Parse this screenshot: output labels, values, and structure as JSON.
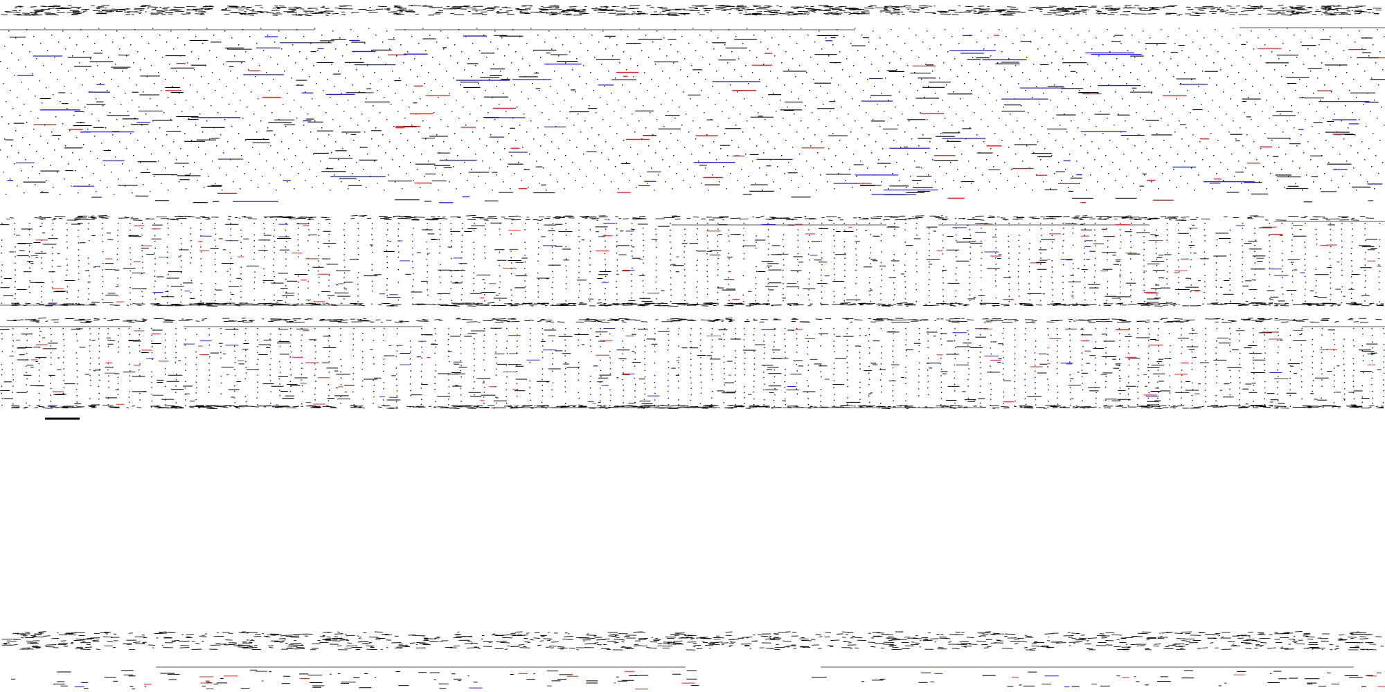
{
  "colors": {
    "background": "#ffffff",
    "ink": "#000000",
    "accent_red": "#e01e1e",
    "accent_blue": "#2222dd",
    "rule": "#555555"
  },
  "content_note_visible_text": []
}
